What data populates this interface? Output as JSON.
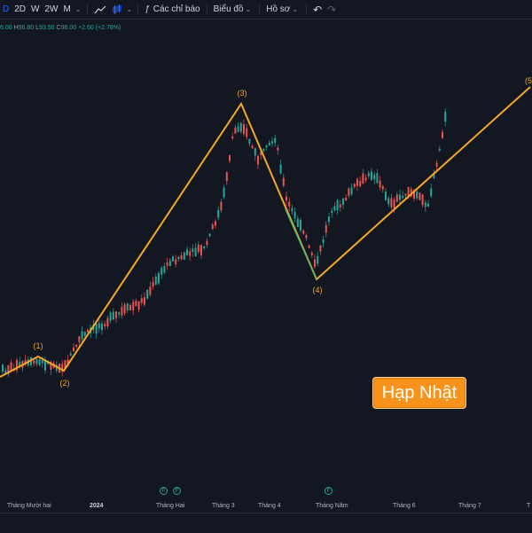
{
  "toolbar": {
    "items": [
      {
        "label": "D",
        "active": true
      },
      {
        "label": "2D"
      },
      {
        "label": "W"
      },
      {
        "label": "2W"
      },
      {
        "label": "M"
      }
    ],
    "indicators_label": "Các chỉ báo",
    "chart_label": "Biểu đồ",
    "profile_label": "Hồ sơ",
    "undo_icon": "undo-icon",
    "redo_icon": "redo-icon"
  },
  "ohlc": {
    "o": "6.00",
    "h_label": "H",
    "h": "96.80",
    "l_label": "L",
    "l": "93.50",
    "c_label": "C",
    "c": "96.00",
    "change": "+2.60 (+2.78%)"
  },
  "wave_labels": [
    "(1)",
    "(2)",
    "(3)",
    "(4)",
    "(5"
  ],
  "badge": "Hạp Nhật",
  "time_axis": [
    {
      "label": "Tháng Mười hai",
      "bold": false
    },
    {
      "label": "2024",
      "bold": true
    },
    {
      "label": "Tháng Hai",
      "bold": false
    },
    {
      "label": "Tháng 3",
      "bold": false
    },
    {
      "label": "Tháng 4",
      "bold": false
    },
    {
      "label": "Tháng Năm",
      "bold": false
    },
    {
      "label": "Tháng 6",
      "bold": false
    },
    {
      "label": "Tháng 7",
      "bold": false
    },
    {
      "label": "T",
      "bold": false
    }
  ],
  "events": [
    "F",
    "F",
    "F"
  ],
  "colors": {
    "up": "#26a69a",
    "down": "#ef5350",
    "wave": "#f7a623",
    "background": "#131722",
    "badge": "#f7931a"
  }
}
